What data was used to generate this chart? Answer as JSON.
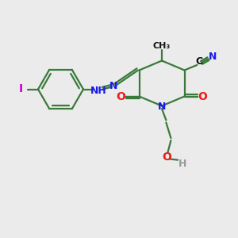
{
  "bg_color": "#ebebeb",
  "bond_color": "#3a7a3a",
  "N_color": "#1a1aee",
  "O_color": "#ee1a1a",
  "I_color": "#cc00cc",
  "H_color": "#999999",
  "C_color": "#111111",
  "lw": 1.6,
  "figsize": [
    3.0,
    3.0
  ],
  "dpi": 100,
  "xlim": [
    0,
    10
  ],
  "ylim": [
    0,
    10
  ]
}
